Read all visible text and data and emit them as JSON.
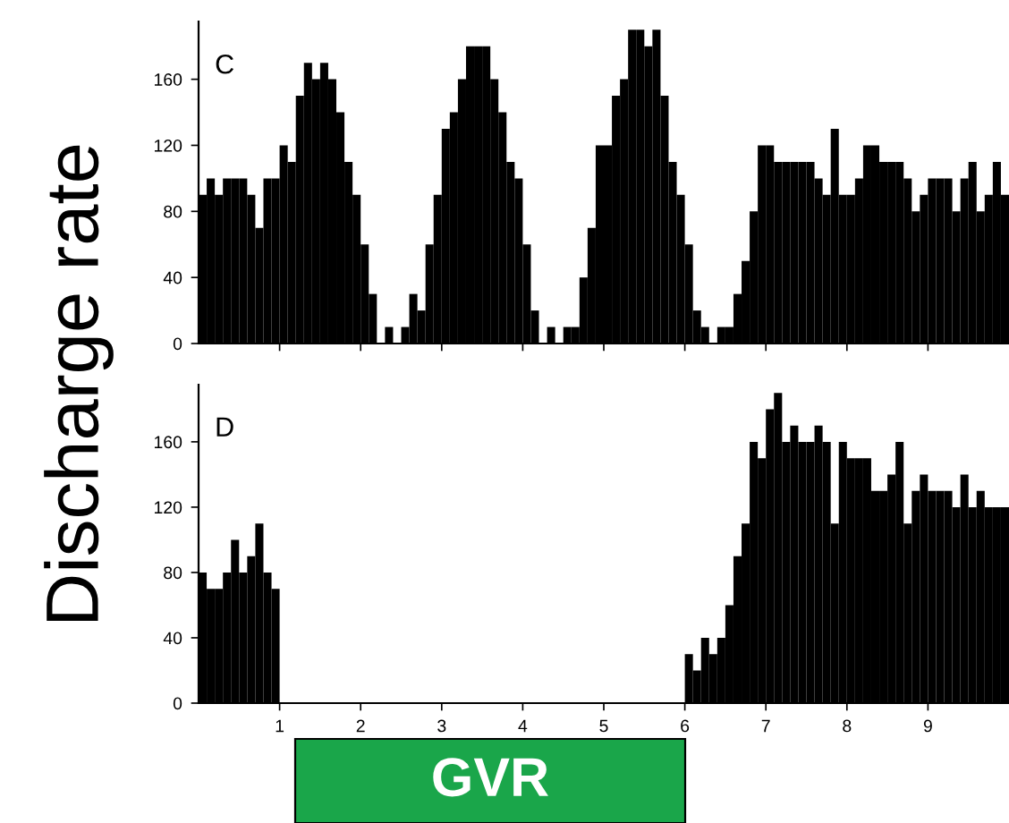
{
  "chart_data": [
    {
      "type": "histogram",
      "title": "C",
      "ylabel": "Discharge rate",
      "tick_labels": "y",
      "xlim": [
        0,
        10
      ],
      "ylim": [
        0,
        195
      ],
      "yticks": [
        0,
        40,
        80,
        120,
        160
      ],
      "xticks": [
        {
          "value": 1,
          "label": null
        },
        {
          "value": 2,
          "label": null
        },
        {
          "value": 3,
          "label": null
        },
        {
          "value": 4,
          "label": null
        },
        {
          "value": 5,
          "label": null
        },
        {
          "value": 6,
          "label": null
        },
        {
          "value": 7,
          "label": null
        },
        {
          "value": 8,
          "label": null
        },
        {
          "value": 9,
          "label": null
        }
      ],
      "bins": [
        0,
        0.1,
        0.2,
        0.3,
        0.4,
        0.5,
        0.6,
        0.7,
        0.8,
        0.9,
        1,
        1.1,
        1.2,
        1.3,
        1.4,
        1.5,
        1.6,
        1.7,
        1.8,
        1.9,
        2,
        2.1,
        2.2,
        2.3,
        2.4,
        2.5,
        2.6,
        2.7,
        2.8,
        2.9,
        3,
        3.1,
        3.2,
        3.3,
        3.4,
        3.5,
        3.6,
        3.7,
        3.8,
        3.9,
        4,
        4.1,
        4.2,
        4.3,
        4.4,
        4.5,
        4.6,
        4.7,
        4.8,
        4.9,
        5,
        5.1,
        5.2,
        5.3,
        5.4,
        5.5,
        5.6,
        5.7,
        5.8,
        5.9,
        6,
        6.1,
        6.2,
        6.3,
        6.4,
        6.5,
        6.6,
        6.7,
        6.8,
        6.9,
        7,
        7.1,
        7.2,
        7.3,
        7.4,
        7.5,
        7.6,
        7.7,
        7.8,
        7.9,
        8,
        8.1,
        8.2,
        8.3,
        8.4,
        8.5,
        8.6,
        8.7,
        8.8,
        8.9,
        9,
        9.1,
        9.2,
        9.3,
        9.4,
        9.5,
        9.6,
        9.7,
        9.8,
        9.9,
        10
      ],
      "color": "#000000",
      "values": [
        90,
        100,
        90,
        100,
        100,
        100,
        90,
        70,
        100,
        100,
        120,
        110,
        150,
        170,
        160,
        170,
        160,
        140,
        110,
        90,
        60,
        30,
        0,
        10,
        0,
        10,
        30,
        20,
        60,
        90,
        130,
        140,
        160,
        180,
        180,
        180,
        160,
        140,
        110,
        100,
        60,
        20,
        0,
        10,
        0,
        10,
        10,
        40,
        70,
        120,
        120,
        150,
        160,
        190,
        190,
        180,
        190,
        150,
        110,
        90,
        60,
        20,
        10,
        0,
        10,
        10,
        30,
        50,
        80,
        120,
        120,
        110,
        110,
        110,
        110,
        110,
        100,
        90,
        130,
        90,
        90,
        100,
        120,
        120,
        110,
        110,
        110,
        100,
        80,
        90,
        100,
        100,
        100,
        80,
        100,
        110,
        80,
        90,
        110,
        90
      ]
    },
    {
      "type": "histogram",
      "title": "D",
      "xlim": [
        0,
        10
      ],
      "ylim": [
        0,
        195
      ],
      "yticks": [
        0,
        40,
        80,
        120,
        160
      ],
      "xticks": [
        1,
        2,
        3,
        4,
        5,
        6,
        7,
        8,
        9
      ],
      "bins": [
        0,
        0.1,
        0.2,
        0.3,
        0.4,
        0.5,
        0.6,
        0.7,
        0.8,
        0.9,
        1,
        1.1,
        1.2,
        1.3,
        1.4,
        1.5,
        1.6,
        1.7,
        1.8,
        1.9,
        2,
        2.1,
        2.2,
        2.3,
        2.4,
        2.5,
        2.6,
        2.7,
        2.8,
        2.9,
        3,
        3.1,
        3.2,
        3.3,
        3.4,
        3.5,
        3.6,
        3.7,
        3.8,
        3.9,
        4,
        4.1,
        4.2,
        4.3,
        4.4,
        4.5,
        4.6,
        4.7,
        4.8,
        4.9,
        5,
        5.1,
        5.2,
        5.3,
        5.4,
        5.5,
        5.6,
        5.7,
        5.8,
        5.9,
        6,
        6.1,
        6.2,
        6.3,
        6.4,
        6.5,
        6.6,
        6.7,
        6.8,
        6.9,
        7,
        7.1,
        7.2,
        7.3,
        7.4,
        7.5,
        7.6,
        7.7,
        7.8,
        7.9,
        8,
        8.1,
        8.2,
        8.3,
        8.4,
        8.5,
        8.6,
        8.7,
        8.8,
        8.9,
        9,
        9.1,
        9.2,
        9.3,
        9.4,
        9.5,
        9.6,
        9.7,
        9.8,
        9.9,
        10
      ],
      "color": "#000000",
      "values": [
        80,
        70,
        70,
        80,
        100,
        80,
        90,
        110,
        80,
        70,
        0,
        0,
        0,
        0,
        0,
        0,
        0,
        0,
        0,
        0,
        0,
        0,
        0,
        0,
        0,
        0,
        0,
        0,
        0,
        0,
        0,
        0,
        0,
        0,
        0,
        0,
        0,
        0,
        0,
        0,
        0,
        0,
        0,
        0,
        0,
        0,
        0,
        0,
        0,
        0,
        0,
        0,
        0,
        0,
        0,
        0,
        0,
        0,
        0,
        0,
        30,
        20,
        40,
        30,
        40,
        60,
        90,
        110,
        160,
        150,
        180,
        190,
        160,
        170,
        160,
        160,
        170,
        160,
        110,
        160,
        150,
        150,
        150,
        130,
        130,
        140,
        160,
        110,
        130,
        140,
        130,
        130,
        130,
        120,
        140,
        120,
        130,
        120,
        120,
        120
      ],
      "annotations": [
        "GVR"
      ]
    }
  ]
}
